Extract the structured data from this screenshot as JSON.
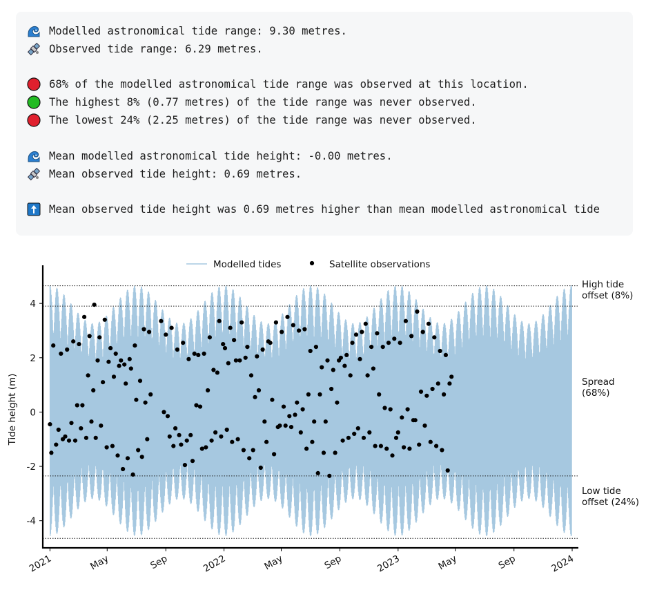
{
  "summary": {
    "lines": [
      {
        "icon": "wave-icon",
        "text": "Modelled astronomical tide range: 9.30 metres."
      },
      {
        "icon": "satellite-icon",
        "text": "Observed tide range: 6.29 metres."
      },
      {
        "icon": "red-circle-icon",
        "text": "68% of the modelled astronomical tide range was observed at this location."
      },
      {
        "icon": "green-circle-icon",
        "text": "The highest 8% (0.77 metres) of the tide range was never observed."
      },
      {
        "icon": "red-circle-icon",
        "text": "The lowest 24% (2.25 metres) of the tide range was never observed."
      },
      {
        "icon": "wave-icon",
        "text": "Mean modelled astronomical tide height: -0.00 metres."
      },
      {
        "icon": "satellite-icon",
        "text": "Mean observed tide height: 0.69 metres."
      },
      {
        "icon": "up-arrow-icon",
        "text": "Mean observed tide height was 0.69 metres higher than mean modelled astronomical tide"
      }
    ]
  },
  "colors": {
    "modelled": "#a6c8e0",
    "observed": "#000000",
    "red_status": "#e0202e",
    "green_status": "#22bb22",
    "arrow_box": "#1f78c8"
  },
  "chart_data": {
    "type": "line",
    "ylabel": "Tide height (m)",
    "xlabel": "",
    "ylim": [
      -5.0,
      5.2
    ],
    "xlim": [
      "2020-12-17",
      "2024-01-14"
    ],
    "yticks": [
      -4,
      -2,
      0,
      2,
      4
    ],
    "xticks": [
      {
        "date": "2021-01-01",
        "label": "2021"
      },
      {
        "date": "2021-05-01",
        "label": "May"
      },
      {
        "date": "2021-09-01",
        "label": "Sep"
      },
      {
        "date": "2022-01-01",
        "label": "2022"
      },
      {
        "date": "2022-05-01",
        "label": "May"
      },
      {
        "date": "2022-09-01",
        "label": "Sep"
      },
      {
        "date": "2023-01-01",
        "label": "2023"
      },
      {
        "date": "2023-05-01",
        "label": "May"
      },
      {
        "date": "2023-09-01",
        "label": "Sep"
      },
      {
        "date": "2024-01-01",
        "label": "2024"
      }
    ],
    "legend": {
      "placement": "top-center",
      "entries": [
        "Modelled tides",
        "Satellite observations"
      ]
    },
    "modelled_range": [
      -4.65,
      4.65
    ],
    "reference_lines": [
      {
        "y": 4.65,
        "label": ""
      },
      {
        "y": 3.9,
        "label": "High tide offset (8%)"
      },
      {
        "y": -2.35,
        "label": "Low tide offset (24%)"
      },
      {
        "y": -4.65,
        "label": ""
      }
    ],
    "spread_label": "Spread (68%)",
    "series": [
      {
        "name": "Modelled tides",
        "style": "band",
        "min": -4.65,
        "max": 4.65
      },
      {
        "name": "Satellite observations",
        "style": "scatter",
        "points": [
          {
            "x": "2021-01-01",
            "y": -0.45
          },
          {
            "x": "2021-01-04",
            "y": -1.5
          },
          {
            "x": "2021-01-08",
            "y": 2.45
          },
          {
            "x": "2021-01-14",
            "y": -1.2
          },
          {
            "x": "2021-01-19",
            "y": -0.65
          },
          {
            "x": "2021-01-24",
            "y": 2.15
          },
          {
            "x": "2021-01-28",
            "y": -1.0
          },
          {
            "x": "2021-02-02",
            "y": -0.9
          },
          {
            "x": "2021-02-06",
            "y": 2.3
          },
          {
            "x": "2021-02-10",
            "y": -1.05
          },
          {
            "x": "2021-02-15",
            "y": -0.4
          },
          {
            "x": "2021-02-19",
            "y": 2.6
          },
          {
            "x": "2021-02-23",
            "y": -1.05
          },
          {
            "x": "2021-02-27",
            "y": 0.25
          },
          {
            "x": "2021-03-03",
            "y": 2.5
          },
          {
            "x": "2021-03-07",
            "y": -0.6
          },
          {
            "x": "2021-03-10",
            "y": 0.25
          },
          {
            "x": "2021-03-14",
            "y": 3.5
          },
          {
            "x": "2021-03-18",
            "y": -0.95
          },
          {
            "x": "2021-03-22",
            "y": 1.35
          },
          {
            "x": "2021-03-25",
            "y": 2.8
          },
          {
            "x": "2021-03-29",
            "y": -0.35
          },
          {
            "x": "2021-04-02",
            "y": 0.8
          },
          {
            "x": "2021-04-04",
            "y": 3.95
          },
          {
            "x": "2021-04-07",
            "y": -0.95
          },
          {
            "x": "2021-04-11",
            "y": 1.9
          },
          {
            "x": "2021-04-15",
            "y": 2.75
          },
          {
            "x": "2021-04-18",
            "y": -0.5
          },
          {
            "x": "2021-04-22",
            "y": 1.1
          },
          {
            "x": "2021-04-26",
            "y": 3.4
          },
          {
            "x": "2021-04-30",
            "y": -1.3
          },
          {
            "x": "2021-05-04",
            "y": 1.85
          },
          {
            "x": "2021-05-08",
            "y": 2.35
          },
          {
            "x": "2021-05-12",
            "y": -1.25
          },
          {
            "x": "2021-05-15",
            "y": 1.3
          },
          {
            "x": "2021-05-19",
            "y": 2.15
          },
          {
            "x": "2021-05-23",
            "y": -1.6
          },
          {
            "x": "2021-05-26",
            "y": 1.7
          },
          {
            "x": "2021-05-30",
            "y": 1.9
          },
          {
            "x": "2021-06-03",
            "y": -2.1
          },
          {
            "x": "2021-06-06",
            "y": 1.75
          },
          {
            "x": "2021-06-09",
            "y": 1.05
          },
          {
            "x": "2021-06-13",
            "y": -1.7
          },
          {
            "x": "2021-06-17",
            "y": 1.95
          },
          {
            "x": "2021-06-20",
            "y": 1.6
          },
          {
            "x": "2021-06-24",
            "y": -2.3
          },
          {
            "x": "2021-06-28",
            "y": 2.45
          },
          {
            "x": "2021-07-01",
            "y": 0.45
          },
          {
            "x": "2021-07-05",
            "y": -1.4
          },
          {
            "x": "2021-07-09",
            "y": 1.15
          },
          {
            "x": "2021-07-13",
            "y": -1.65
          },
          {
            "x": "2021-07-17",
            "y": 3.05
          },
          {
            "x": "2021-07-20",
            "y": 0.35
          },
          {
            "x": "2021-07-24",
            "y": -1.0
          },
          {
            "x": "2021-07-28",
            "y": 2.95
          },
          {
            "x": "2021-07-31",
            "y": 0.65
          },
          {
            "x": "2021-08-22",
            "y": 3.35
          },
          {
            "x": "2021-08-28",
            "y": 0.0
          },
          {
            "x": "2021-09-01",
            "y": 2.85
          },
          {
            "x": "2021-09-05",
            "y": -0.15
          },
          {
            "x": "2021-09-09",
            "y": -0.9
          },
          {
            "x": "2021-09-13",
            "y": 3.1
          },
          {
            "x": "2021-09-17",
            "y": -1.25
          },
          {
            "x": "2021-09-21",
            "y": -0.6
          },
          {
            "x": "2021-09-25",
            "y": 2.3
          },
          {
            "x": "2021-09-29",
            "y": -0.85
          },
          {
            "x": "2021-10-03",
            "y": -1.2
          },
          {
            "x": "2021-10-07",
            "y": 2.55
          },
          {
            "x": "2021-10-11",
            "y": -1.95
          },
          {
            "x": "2021-10-15",
            "y": -1.05
          },
          {
            "x": "2021-10-19",
            "y": 1.95
          },
          {
            "x": "2021-10-23",
            "y": -0.85
          },
          {
            "x": "2021-10-27",
            "y": -1.8
          },
          {
            "x": "2021-10-31",
            "y": 2.15
          },
          {
            "x": "2021-11-04",
            "y": 0.25
          },
          {
            "x": "2021-11-08",
            "y": 2.1
          },
          {
            "x": "2021-11-12",
            "y": 0.2
          },
          {
            "x": "2021-11-16",
            "y": -1.35
          },
          {
            "x": "2021-11-20",
            "y": 2.15
          },
          {
            "x": "2021-11-24",
            "y": -1.3
          },
          {
            "x": "2021-11-28",
            "y": 0.8
          },
          {
            "x": "2021-12-02",
            "y": 2.75
          },
          {
            "x": "2021-12-06",
            "y": -1.05
          },
          {
            "x": "2021-12-10",
            "y": 1.55
          },
          {
            "x": "2021-12-14",
            "y": -0.75
          },
          {
            "x": "2021-12-18",
            "y": 1.45
          },
          {
            "x": "2021-12-22",
            "y": 3.35
          },
          {
            "x": "2021-12-26",
            "y": -0.9
          },
          {
            "x": "2021-12-30",
            "y": 2.5
          },
          {
            "x": "2022-01-03",
            "y": 2.35
          },
          {
            "x": "2022-01-07",
            "y": -0.65
          },
          {
            "x": "2022-01-10",
            "y": 1.8
          },
          {
            "x": "2022-01-14",
            "y": 3.1
          },
          {
            "x": "2022-01-18",
            "y": -1.1
          },
          {
            "x": "2022-01-22",
            "y": 2.65
          },
          {
            "x": "2022-01-26",
            "y": 1.9
          },
          {
            "x": "2022-01-30",
            "y": -1.0
          },
          {
            "x": "2022-02-03",
            "y": 1.9
          },
          {
            "x": "2022-02-07",
            "y": 3.3
          },
          {
            "x": "2022-02-11",
            "y": -1.4
          },
          {
            "x": "2022-02-15",
            "y": 2.0
          },
          {
            "x": "2022-02-19",
            "y": 2.4
          },
          {
            "x": "2022-02-23",
            "y": -1.7
          },
          {
            "x": "2022-02-27",
            "y": 1.35
          },
          {
            "x": "2022-03-03",
            "y": -1.4
          },
          {
            "x": "2022-03-07",
            "y": 0.55
          },
          {
            "x": "2022-03-11",
            "y": 2.05
          },
          {
            "x": "2022-03-15",
            "y": 0.8
          },
          {
            "x": "2022-03-19",
            "y": -2.05
          },
          {
            "x": "2022-03-23",
            "y": 2.3
          },
          {
            "x": "2022-03-27",
            "y": -0.35
          },
          {
            "x": "2022-03-31",
            "y": -1.1
          },
          {
            "x": "2022-04-04",
            "y": 2.6
          },
          {
            "x": "2022-04-08",
            "y": 2.55
          },
          {
            "x": "2022-04-12",
            "y": 0.45
          },
          {
            "x": "2022-04-16",
            "y": -1.55
          },
          {
            "x": "2022-04-20",
            "y": 3.3
          },
          {
            "x": "2022-04-24",
            "y": -0.55
          },
          {
            "x": "2022-04-28",
            "y": -0.5
          },
          {
            "x": "2022-05-02",
            "y": 2.95
          },
          {
            "x": "2022-05-06",
            "y": 0.2
          },
          {
            "x": "2022-05-10",
            "y": -0.5
          },
          {
            "x": "2022-05-14",
            "y": 3.5
          },
          {
            "x": "2022-05-18",
            "y": -0.15
          },
          {
            "x": "2022-05-22",
            "y": -0.55
          },
          {
            "x": "2022-05-26",
            "y": 3.2
          },
          {
            "x": "2022-05-30",
            "y": -0.1
          },
          {
            "x": "2022-06-03",
            "y": 0.35
          },
          {
            "x": "2022-06-07",
            "y": 3.0
          },
          {
            "x": "2022-06-11",
            "y": -0.75
          },
          {
            "x": "2022-06-15",
            "y": 0.1
          },
          {
            "x": "2022-06-19",
            "y": 3.05
          },
          {
            "x": "2022-06-23",
            "y": -1.35
          },
          {
            "x": "2022-06-27",
            "y": 0.65
          },
          {
            "x": "2022-07-01",
            "y": 2.25
          },
          {
            "x": "2022-07-05",
            "y": -1.1
          },
          {
            "x": "2022-07-09",
            "y": -0.35
          },
          {
            "x": "2022-07-13",
            "y": 2.4
          },
          {
            "x": "2022-07-17",
            "y": -2.25
          },
          {
            "x": "2022-07-21",
            "y": 0.65
          },
          {
            "x": "2022-07-25",
            "y": 1.65
          },
          {
            "x": "2022-07-29",
            "y": -1.5
          },
          {
            "x": "2022-08-02",
            "y": -0.35
          },
          {
            "x": "2022-08-06",
            "y": 1.9
          },
          {
            "x": "2022-08-10",
            "y": -2.35
          },
          {
            "x": "2022-08-14",
            "y": 0.85
          },
          {
            "x": "2022-08-18",
            "y": 1.55
          },
          {
            "x": "2022-08-22",
            "y": -1.5
          },
          {
            "x": "2022-08-26",
            "y": 0.35
          },
          {
            "x": "2022-08-30",
            "y": 1.9
          },
          {
            "x": "2022-09-03",
            "y": 2.0
          },
          {
            "x": "2022-09-07",
            "y": -1.05
          },
          {
            "x": "2022-09-11",
            "y": 1.7
          },
          {
            "x": "2022-09-15",
            "y": 2.1
          },
          {
            "x": "2022-09-19",
            "y": -0.95
          },
          {
            "x": "2022-09-23",
            "y": 1.35
          },
          {
            "x": "2022-09-27",
            "y": 2.55
          },
          {
            "x": "2022-10-01",
            "y": -0.8
          },
          {
            "x": "2022-10-05",
            "y": 2.85
          },
          {
            "x": "2022-10-09",
            "y": -0.6
          },
          {
            "x": "2022-10-13",
            "y": 1.95
          },
          {
            "x": "2022-10-17",
            "y": 2.95
          },
          {
            "x": "2022-10-21",
            "y": -0.95
          },
          {
            "x": "2022-10-25",
            "y": 3.25
          },
          {
            "x": "2022-10-29",
            "y": 1.35
          },
          {
            "x": "2022-11-02",
            "y": -0.75
          },
          {
            "x": "2022-11-06",
            "y": 2.4
          },
          {
            "x": "2022-11-10",
            "y": 1.6
          },
          {
            "x": "2022-11-14",
            "y": -1.25
          },
          {
            "x": "2022-11-18",
            "y": 2.9
          },
          {
            "x": "2022-11-22",
            "y": 0.65
          },
          {
            "x": "2022-11-26",
            "y": -1.25
          },
          {
            "x": "2022-11-30",
            "y": 2.4
          },
          {
            "x": "2022-12-04",
            "y": 0.15
          },
          {
            "x": "2022-12-08",
            "y": -1.35
          },
          {
            "x": "2022-12-12",
            "y": 2.55
          },
          {
            "x": "2022-12-16",
            "y": 0.1
          },
          {
            "x": "2022-12-20",
            "y": -1.6
          },
          {
            "x": "2022-12-24",
            "y": 2.7
          },
          {
            "x": "2022-12-28",
            "y": -0.95
          },
          {
            "x": "2023-01-01",
            "y": -0.75
          },
          {
            "x": "2023-01-05",
            "y": 2.55
          },
          {
            "x": "2023-01-09",
            "y": -0.2
          },
          {
            "x": "2023-01-13",
            "y": -1.3
          },
          {
            "x": "2023-01-17",
            "y": 3.35
          },
          {
            "x": "2023-01-21",
            "y": 0.1
          },
          {
            "x": "2023-01-25",
            "y": -1.35
          },
          {
            "x": "2023-01-29",
            "y": 2.8
          },
          {
            "x": "2023-02-02",
            "y": -0.3
          },
          {
            "x": "2023-02-06",
            "y": -0.3
          },
          {
            "x": "2023-02-10",
            "y": 3.7
          },
          {
            "x": "2023-02-14",
            "y": -1.2
          },
          {
            "x": "2023-02-18",
            "y": 0.75
          },
          {
            "x": "2023-02-22",
            "y": 2.95
          },
          {
            "x": "2023-02-26",
            "y": -0.5
          },
          {
            "x": "2023-03-02",
            "y": 0.6
          },
          {
            "x": "2023-03-06",
            "y": 3.25
          },
          {
            "x": "2023-03-10",
            "y": -1.1
          },
          {
            "x": "2023-03-14",
            "y": 0.85
          },
          {
            "x": "2023-03-18",
            "y": 2.75
          },
          {
            "x": "2023-03-22",
            "y": -1.25
          },
          {
            "x": "2023-03-26",
            "y": 1.05
          },
          {
            "x": "2023-03-30",
            "y": 2.25
          },
          {
            "x": "2023-04-03",
            "y": -1.4
          },
          {
            "x": "2023-04-07",
            "y": 0.65
          },
          {
            "x": "2023-04-11",
            "y": 2.1
          },
          {
            "x": "2023-04-15",
            "y": -2.15
          },
          {
            "x": "2023-04-19",
            "y": 1.05
          },
          {
            "x": "2023-04-23",
            "y": 1.3
          }
        ]
      }
    ]
  },
  "notes": {
    "high_offset_label": "High tide offset (8%)",
    "spread_label": "Spread (68%)",
    "low_offset_label": "Low tide offset (24%)"
  }
}
